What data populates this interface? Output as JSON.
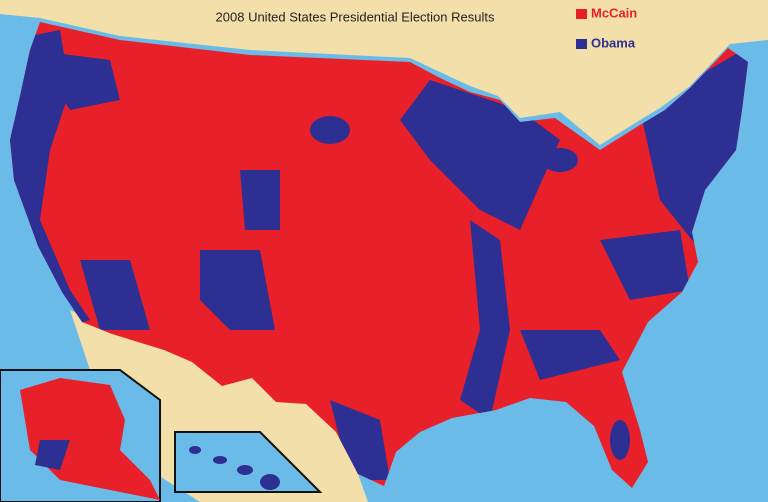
{
  "title": "2008 United States Presidential Election Results",
  "legend": [
    {
      "label": "McCain",
      "color": "#e8202a"
    },
    {
      "label": "Obama",
      "color": "#2e2f92"
    }
  ]
}
